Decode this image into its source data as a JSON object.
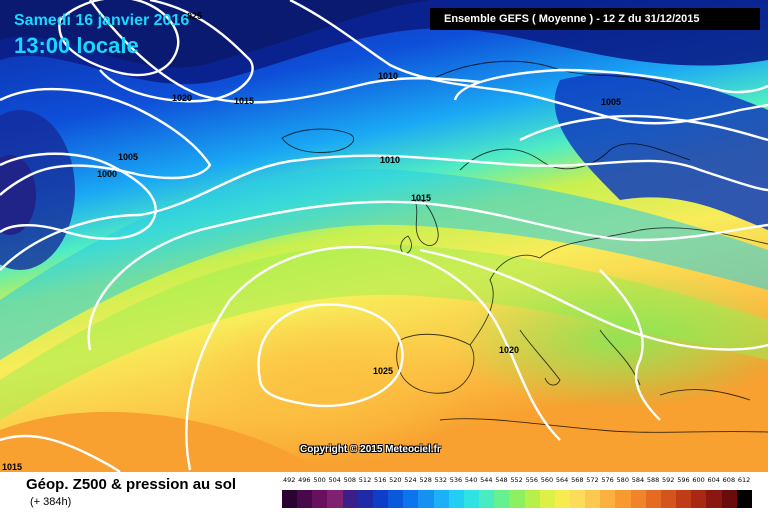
{
  "header": {
    "date": "Samedi 16 janvier 2016",
    "time": "13:00 locale",
    "run_info": "Ensemble GEFS  ( Moyenne )  -  12 Z du 31/12/2015"
  },
  "copyright": "Copyright © 2015 Meteociel.fr",
  "footer": {
    "field": "Géop. Z500 & pression au sol",
    "lead": "(+ 384h)"
  },
  "isobar_labels": [
    "1025",
    "1020",
    "1015",
    "1010",
    "1005",
    "1000",
    "1010",
    "1015",
    "1005",
    "1020",
    "1025",
    "1015"
  ],
  "legend": {
    "values": [
      "492",
      "496",
      "500",
      "504",
      "508",
      "512",
      "516",
      "520",
      "524",
      "528",
      "532",
      "536",
      "540",
      "544",
      "548",
      "552",
      "556",
      "560",
      "564",
      "568",
      "572",
      "576",
      "580",
      "584",
      "588",
      "592",
      "596",
      "600",
      "604",
      "608",
      "612"
    ],
    "colors": [
      "#2a0330",
      "#48084a",
      "#68105e",
      "#802070",
      "#3a1e8a",
      "#1e2aa8",
      "#0e3ec8",
      "#0a58dc",
      "#0c74ec",
      "#1492f2",
      "#1cb0f6",
      "#22cef4",
      "#30e2e2",
      "#48ecc0",
      "#66f090",
      "#8cf060",
      "#b6f048",
      "#dcf048",
      "#f6ec50",
      "#fcdc58",
      "#fcc850",
      "#fcb040",
      "#f89a30",
      "#f08428",
      "#e46c22",
      "#d4541c",
      "#c03c18",
      "#a82814",
      "#8a1810",
      "#6a0c0c",
      "#000000"
    ]
  }
}
